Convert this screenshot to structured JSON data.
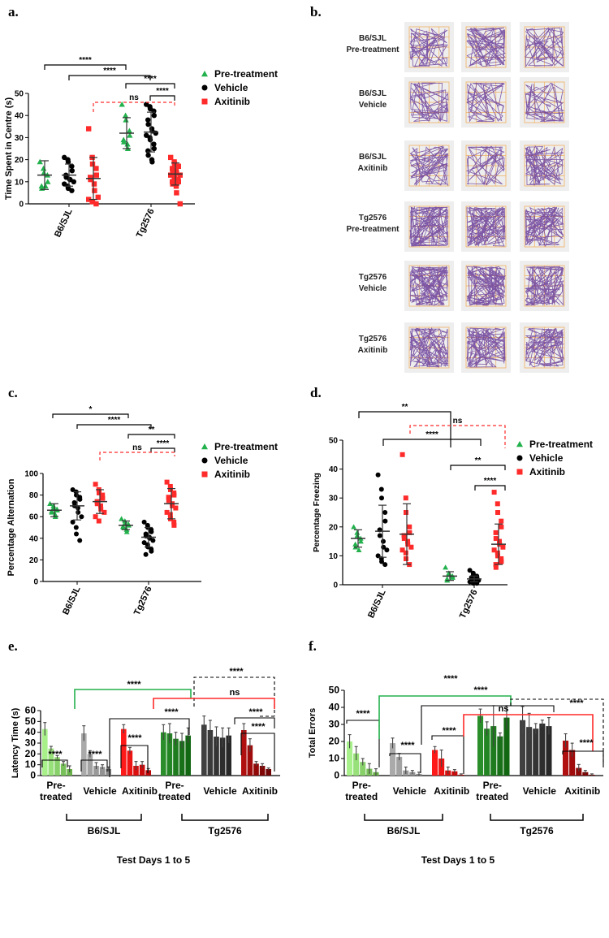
{
  "panel_labels": {
    "a": "a.",
    "b": "b.",
    "c": "c.",
    "d": "d.",
    "e": "e.",
    "f": "f."
  },
  "colors": {
    "pre": "#22b14c",
    "vehicle": "#000000",
    "axitinib": "#ff2a2a"
  },
  "legend": {
    "pre": "Pre-treatment",
    "vehicle": "Vehicle",
    "axitinib": "Axitinib"
  },
  "panel_b": {
    "rows": [
      {
        "line1": "B6/SJL",
        "line2": "Pre-treatment"
      },
      {
        "line1": "B6/SJL",
        "line2": "Vehicle"
      },
      {
        "line1": "B6/SJL",
        "line2": "Axitinib"
      },
      {
        "line1": "Tg2576",
        "line2": "Pre-treatment"
      },
      {
        "line1": "Tg2576",
        "line2": "Vehicle"
      },
      {
        "line1": "Tg2576",
        "line2": "Axitinib"
      }
    ],
    "density": [
      [
        0.35,
        0.45,
        0.35
      ],
      [
        0.3,
        0.25,
        0.3
      ],
      [
        0.3,
        0.2,
        0.45
      ],
      [
        0.85,
        0.8,
        0.7
      ],
      [
        0.8,
        1.0,
        0.7
      ],
      [
        0.65,
        0.65,
        0.6
      ]
    ]
  },
  "chart_data": [
    {
      "id": "a",
      "type": "scatter",
      "ylabel": "Time Spent in Centre (s)",
      "ylim": [
        0,
        50
      ],
      "yticks": [
        0,
        10,
        20,
        30,
        40,
        50
      ],
      "categories": [
        "B6/SJL",
        "Tg2576"
      ],
      "series": [
        {
          "name": "Pre-treatment",
          "mean": [
            13,
            32
          ],
          "sd": [
            6.5,
            7
          ]
        },
        {
          "name": "Vehicle",
          "mean": [
            13,
            32.5
          ],
          "sd": [
            5,
            9
          ]
        },
        {
          "name": "Axitinib",
          "mean": [
            11.5,
            13.5
          ],
          "sd": [
            9.5,
            5
          ]
        }
      ],
      "points": [
        [
          [
            19,
            16,
            14,
            13,
            10,
            8,
            7,
            8
          ],
          [
            21,
            20,
            19,
            17,
            15,
            13,
            12,
            11,
            11,
            10,
            9,
            8,
            7,
            6
          ],
          [
            34,
            21,
            18,
            16,
            13,
            12,
            11,
            9,
            6,
            3,
            2,
            1,
            1,
            0
          ]
        ],
        [
          [
            45,
            40,
            38,
            33,
            31,
            29,
            28,
            27,
            25
          ],
          [
            45,
            44,
            43,
            42,
            40,
            38,
            36,
            34,
            33,
            32,
            31,
            30,
            29,
            27,
            25,
            24,
            22,
            20,
            19
          ],
          [
            21,
            19,
            18,
            17,
            17,
            16,
            15,
            15,
            14,
            13,
            13,
            12,
            12,
            11,
            10,
            10,
            9,
            8,
            5,
            0
          ]
        ]
      ],
      "annotations": [
        "****",
        "****",
        "****",
        "****",
        "ns"
      ]
    },
    {
      "id": "c",
      "type": "scatter",
      "ylabel": "Percentage Alternation",
      "ylim": [
        0,
        100
      ],
      "yticks": [
        0,
        20,
        40,
        60,
        80,
        100
      ],
      "categories": [
        "B6/SJL",
        "Tg2576"
      ],
      "series": [
        {
          "name": "Pre-treatment",
          "mean": [
            66,
            52
          ],
          "sd": [
            6,
            4
          ]
        },
        {
          "name": "Vehicle",
          "mean": [
            70,
            41
          ],
          "sd": [
            13,
            9
          ]
        },
        {
          "name": "Axitinib",
          "mean": [
            74,
            72
          ],
          "sd": [
            11,
            14
          ]
        }
      ],
      "points": [
        [
          [
            72,
            70,
            68,
            67,
            66,
            65,
            64,
            62,
            60
          ],
          [
            85,
            83,
            80,
            78,
            76,
            73,
            70,
            68,
            64,
            60,
            55,
            50,
            44,
            38
          ],
          [
            90,
            85,
            82,
            80,
            77,
            74,
            72,
            70,
            67,
            64,
            60,
            56
          ]
        ],
        [
          [
            58,
            56,
            54,
            53,
            52,
            51,
            50,
            48,
            46
          ],
          [
            55,
            52,
            50,
            48,
            46,
            44,
            42,
            41,
            40,
            38,
            36,
            34,
            32,
            30,
            28,
            25
          ],
          [
            92,
            88,
            85,
            82,
            80,
            78,
            75,
            72,
            70,
            68,
            64,
            62,
            58,
            55,
            52
          ]
        ]
      ],
      "annotations": [
        "*",
        "****",
        "**",
        "****",
        "ns"
      ]
    },
    {
      "id": "d",
      "type": "scatter",
      "ylabel": "Percentage Freezing",
      "ylim": [
        0,
        50
      ],
      "yticks": [
        0,
        10,
        20,
        30,
        40,
        50
      ],
      "categories": [
        "B6/SJL",
        "Tg2576"
      ],
      "series": [
        {
          "name": "Pre-treatment",
          "mean": [
            16,
            3
          ],
          "sd": [
            3,
            1.5
          ]
        },
        {
          "name": "Vehicle",
          "mean": [
            18.5,
            2
          ],
          "sd": [
            9,
            1
          ]
        },
        {
          "name": "Axitinib",
          "mean": [
            17.5,
            14
          ],
          "sd": [
            10.5,
            7
          ]
        }
      ],
      "points": [
        [
          [
            20,
            18,
            17,
            16,
            15,
            14,
            13,
            12
          ],
          [
            38,
            33,
            30,
            25,
            22,
            19,
            17,
            15,
            13,
            12,
            10,
            9,
            8,
            7
          ],
          [
            45,
            30,
            25,
            20,
            18,
            17,
            16,
            15,
            14,
            13,
            12,
            11,
            9,
            7
          ]
        ],
        [
          [
            6,
            4,
            3.5,
            3,
            2.5,
            2,
            1.5
          ],
          [
            5,
            4,
            3.5,
            3,
            2.5,
            2.5,
            2,
            2,
            1.5,
            1.5,
            1,
            1,
            0.5,
            0.5
          ],
          [
            32,
            28,
            25,
            22,
            20,
            18,
            16,
            15,
            14,
            13,
            12,
            11,
            10,
            9,
            8,
            7,
            6
          ]
        ]
      ],
      "annotations": [
        "**",
        "****",
        "**",
        "****",
        "ns"
      ]
    },
    {
      "id": "e",
      "type": "bar",
      "ylabel": "Latency Time (s)",
      "xlabel": "Test Days 1 to 5",
      "ylim": [
        0,
        60
      ],
      "yticks": [
        0,
        10,
        20,
        30,
        40,
        50,
        60
      ],
      "groups": [
        "Pre-treated",
        "Vehicle",
        "Axitinib",
        "Pre-treated",
        "Vehicle",
        "Axitinib"
      ],
      "brackets": [
        "B6/SJL",
        "Tg2576"
      ],
      "values": [
        [
          43,
          25,
          17,
          11,
          6
        ],
        [
          39,
          20,
          9,
          8,
          6
        ],
        [
          43,
          23,
          9,
          10,
          5
        ],
        [
          40,
          39,
          34,
          32,
          37
        ],
        [
          47,
          42,
          36,
          35,
          37
        ],
        [
          42,
          28,
          11,
          9,
          6
        ]
      ],
      "errors": [
        [
          6,
          2,
          1.5,
          2,
          3
        ],
        [
          7,
          3,
          3,
          2,
          2
        ],
        [
          4,
          3,
          4,
          3,
          1.5
        ],
        [
          7,
          9,
          6,
          7,
          7
        ],
        [
          8,
          9,
          9,
          9,
          7
        ],
        [
          6,
          6,
          2,
          2,
          1
        ]
      ],
      "annotations": [
        "****",
        "****",
        "****",
        "****",
        "****",
        "****",
        "ns",
        "****",
        "****"
      ]
    },
    {
      "id": "f",
      "type": "bar",
      "ylabel": "Total  Errors",
      "xlabel": "Test Days 1 to 5",
      "ylim": [
        0,
        50
      ],
      "yticks": [
        0,
        10,
        20,
        30,
        40,
        50
      ],
      "groups": [
        "Pre-treated",
        "Vehicle",
        "Axitinib",
        "Pre-treated",
        "Vehicle",
        "Axitinib"
      ],
      "brackets": [
        "B6/SJL",
        "Tg2576"
      ],
      "values": [
        [
          20,
          13,
          8,
          4,
          2
        ],
        [
          19,
          11,
          3,
          2,
          1
        ],
        [
          15,
          10,
          3,
          2.5,
          0.5
        ],
        [
          35,
          27.5,
          29,
          23,
          34
        ],
        [
          32.5,
          28.5,
          27.5,
          30.5,
          29
        ],
        [
          20.5,
          15,
          4.5,
          2,
          0.5
        ]
      ],
      "errors": [
        [
          4,
          4,
          2,
          3,
          2
        ],
        [
          3,
          2,
          2,
          1,
          1
        ],
        [
          2,
          5,
          2,
          1,
          0.5
        ],
        [
          4,
          4,
          12,
          2,
          7
        ],
        [
          8,
          8,
          3,
          2,
          5
        ],
        [
          4,
          4,
          2,
          1,
          0.5
        ]
      ],
      "annotations": [
        "****",
        "****",
        "****",
        "****",
        "****",
        "ns",
        "****",
        "****"
      ]
    }
  ]
}
